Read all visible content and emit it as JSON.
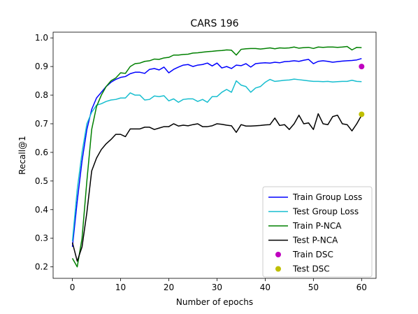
{
  "chart_data": {
    "type": "line",
    "title": "CARS 196",
    "xlabel": "Number of epochs",
    "ylabel": "Recall@1",
    "xlim": [
      -4.0,
      63.0
    ],
    "ylim": [
      0.16,
      1.02
    ],
    "xticks": [
      0,
      10,
      20,
      30,
      40,
      50,
      60
    ],
    "yticks": [
      0.2,
      0.3,
      0.4,
      0.5,
      0.6,
      0.7,
      0.8,
      0.9,
      1.0
    ],
    "xtick_labels": [
      "0",
      "10",
      "20",
      "30",
      "40",
      "50",
      "60"
    ],
    "ytick_labels": [
      "0.2",
      "0.3",
      "0.4",
      "0.5",
      "0.6",
      "0.7",
      "0.8",
      "0.9",
      "1.0"
    ],
    "grid": false,
    "legend_position": "lower-right",
    "series": [
      {
        "name": "Train Group Loss",
        "kind": "line",
        "color": "#0000ff",
        "x": [
          0,
          1,
          2,
          3,
          4,
          5,
          6,
          7,
          8,
          9,
          10,
          11,
          12,
          13,
          14,
          15,
          16,
          17,
          18,
          19,
          20,
          21,
          22,
          23,
          24,
          25,
          26,
          27,
          28,
          29,
          30,
          31,
          32,
          33,
          34,
          35,
          36,
          37,
          38,
          39,
          40,
          41,
          42,
          43,
          44,
          45,
          46,
          47,
          48,
          49,
          50,
          51,
          52,
          53,
          54,
          55,
          56,
          57,
          58,
          59,
          60
        ],
        "y": [
          0.27,
          0.43,
          0.57,
          0.68,
          0.75,
          0.79,
          0.81,
          0.83,
          0.845,
          0.855,
          0.862,
          0.865,
          0.875,
          0.88,
          0.88,
          0.876,
          0.89,
          0.893,
          0.888,
          0.898,
          0.878,
          0.89,
          0.898,
          0.905,
          0.907,
          0.9,
          0.905,
          0.907,
          0.912,
          0.902,
          0.912,
          0.895,
          0.9,
          0.893,
          0.905,
          0.903,
          0.91,
          0.898,
          0.91,
          0.912,
          0.913,
          0.912,
          0.915,
          0.913,
          0.917,
          0.918,
          0.92,
          0.918,
          0.922,
          0.925,
          0.91,
          0.918,
          0.92,
          0.918,
          0.915,
          0.917,
          0.919,
          0.92,
          0.921,
          0.923,
          0.928
        ]
      },
      {
        "name": "Test Group Loss",
        "kind": "line",
        "color": "#17becf",
        "x": [
          0,
          1,
          2,
          3,
          4,
          5,
          6,
          7,
          8,
          9,
          10,
          11,
          12,
          13,
          14,
          15,
          16,
          17,
          18,
          19,
          20,
          21,
          22,
          23,
          24,
          25,
          26,
          27,
          28,
          29,
          30,
          31,
          32,
          33,
          34,
          35,
          36,
          37,
          38,
          39,
          40,
          41,
          42,
          43,
          44,
          45,
          46,
          47,
          48,
          49,
          50,
          51,
          52,
          53,
          54,
          55,
          56,
          57,
          58,
          59,
          60
        ],
        "y": [
          0.29,
          0.47,
          0.6,
          0.7,
          0.74,
          0.765,
          0.77,
          0.778,
          0.783,
          0.785,
          0.79,
          0.79,
          0.808,
          0.8,
          0.8,
          0.783,
          0.785,
          0.797,
          0.795,
          0.798,
          0.78,
          0.787,
          0.775,
          0.785,
          0.787,
          0.787,
          0.778,
          0.785,
          0.775,
          0.795,
          0.795,
          0.81,
          0.82,
          0.81,
          0.85,
          0.835,
          0.83,
          0.81,
          0.825,
          0.83,
          0.845,
          0.855,
          0.848,
          0.85,
          0.852,
          0.853,
          0.856,
          0.854,
          0.852,
          0.85,
          0.848,
          0.848,
          0.847,
          0.848,
          0.846,
          0.847,
          0.848,
          0.848,
          0.852,
          0.848,
          0.847
        ]
      },
      {
        "name": "Train P-NCA",
        "kind": "line",
        "color": "#008000",
        "x": [
          0,
          1,
          2,
          3,
          4,
          5,
          6,
          7,
          8,
          9,
          10,
          11,
          12,
          13,
          14,
          15,
          16,
          17,
          18,
          19,
          20,
          21,
          22,
          23,
          24,
          25,
          26,
          27,
          28,
          29,
          30,
          31,
          32,
          33,
          34,
          35,
          36,
          37,
          38,
          39,
          40,
          41,
          42,
          43,
          44,
          45,
          46,
          47,
          48,
          49,
          50,
          51,
          52,
          53,
          54,
          55,
          56,
          57,
          58,
          59,
          60
        ],
        "y": [
          0.23,
          0.2,
          0.3,
          0.5,
          0.68,
          0.76,
          0.8,
          0.83,
          0.85,
          0.86,
          0.878,
          0.876,
          0.9,
          0.91,
          0.912,
          0.918,
          0.92,
          0.926,
          0.925,
          0.93,
          0.932,
          0.94,
          0.94,
          0.942,
          0.943,
          0.947,
          0.948,
          0.95,
          0.952,
          0.953,
          0.955,
          0.956,
          0.958,
          0.957,
          0.94,
          0.96,
          0.962,
          0.963,
          0.963,
          0.961,
          0.963,
          0.965,
          0.962,
          0.965,
          0.964,
          0.965,
          0.968,
          0.964,
          0.966,
          0.967,
          0.963,
          0.968,
          0.967,
          0.968,
          0.968,
          0.967,
          0.968,
          0.97,
          0.958,
          0.967,
          0.966
        ]
      },
      {
        "name": "Test P-NCA",
        "kind": "line",
        "color": "#000000",
        "x": [
          0,
          1,
          2,
          3,
          4,
          5,
          6,
          7,
          8,
          9,
          10,
          11,
          12,
          13,
          14,
          15,
          16,
          17,
          18,
          19,
          20,
          21,
          22,
          23,
          24,
          25,
          26,
          27,
          28,
          29,
          30,
          31,
          32,
          33,
          34,
          35,
          36,
          37,
          38,
          39,
          40,
          41,
          42,
          43,
          44,
          45,
          46,
          47,
          48,
          49,
          50,
          51,
          52,
          53,
          54,
          55,
          56,
          57,
          58,
          59,
          60
        ],
        "y": [
          0.285,
          0.22,
          0.27,
          0.39,
          0.535,
          0.58,
          0.61,
          0.63,
          0.645,
          0.663,
          0.663,
          0.655,
          0.682,
          0.682,
          0.682,
          0.688,
          0.688,
          0.68,
          0.685,
          0.69,
          0.69,
          0.7,
          0.692,
          0.695,
          0.693,
          0.697,
          0.7,
          0.69,
          0.69,
          0.693,
          0.7,
          0.698,
          0.695,
          0.693,
          0.67,
          0.697,
          0.692,
          0.692,
          0.693,
          0.694,
          0.696,
          0.697,
          0.72,
          0.694,
          0.697,
          0.68,
          0.7,
          0.73,
          0.7,
          0.703,
          0.68,
          0.735,
          0.7,
          0.697,
          0.725,
          0.73,
          0.7,
          0.697,
          0.675,
          0.7,
          0.73
        ]
      },
      {
        "name": "Train DSC",
        "kind": "point",
        "color": "#bf00bf",
        "x": [
          60
        ],
        "y": [
          0.9
        ]
      },
      {
        "name": "Test DSC",
        "kind": "point",
        "color": "#bfbf00",
        "x": [
          60
        ],
        "y": [
          0.733
        ]
      }
    ]
  }
}
